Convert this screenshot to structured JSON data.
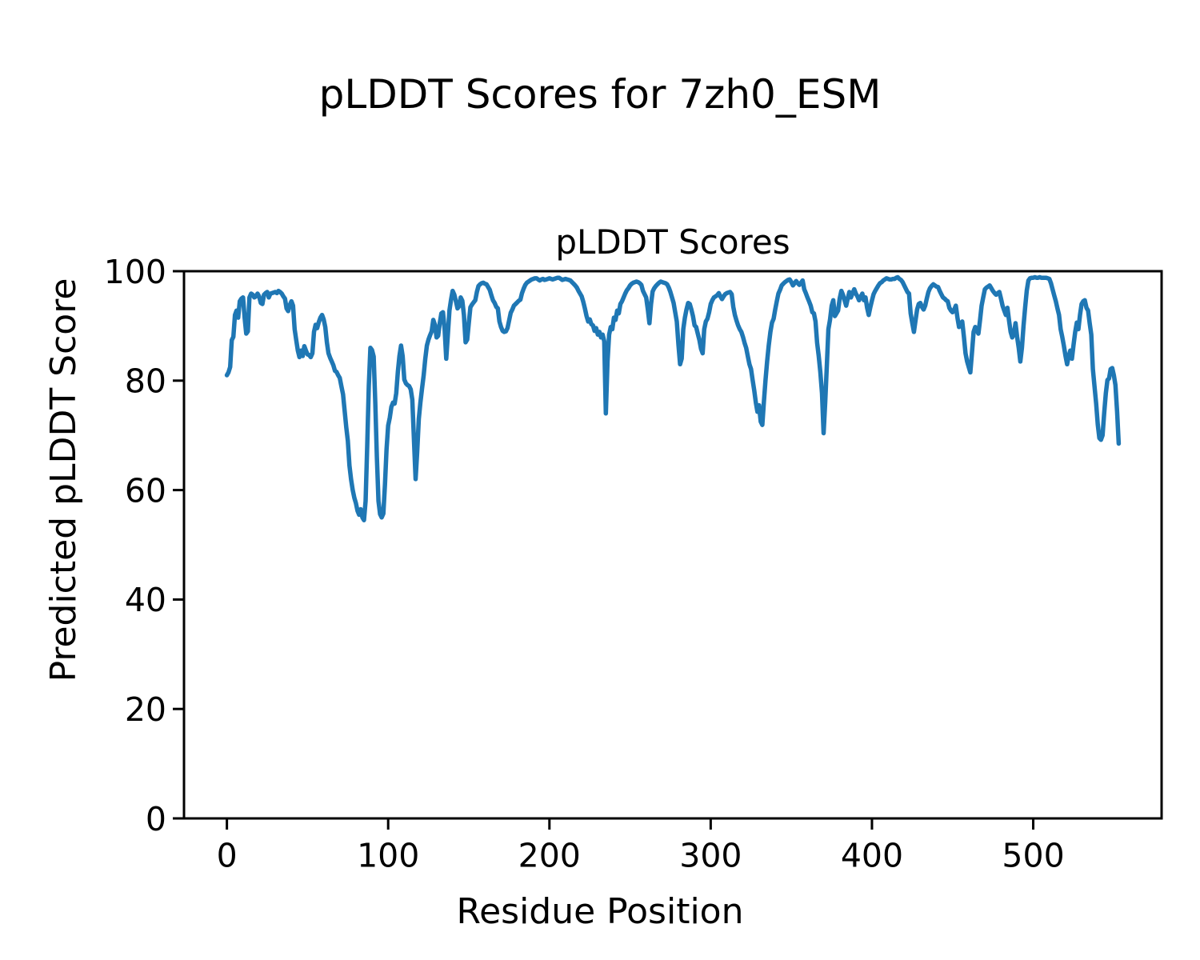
{
  "figure": {
    "suptitle": "pLDDT Scores for 7zh0_ESM"
  },
  "chart_data": {
    "type": "line",
    "title": "pLDDT Scores",
    "xlabel": "Residue Position",
    "ylabel": "Predicted pLDDT Score",
    "x_ticks": [
      0,
      100,
      200,
      300,
      400,
      500
    ],
    "y_ticks": [
      0,
      20,
      40,
      60,
      80,
      100
    ],
    "xlim": [
      -26.6,
      579.6
    ],
    "ylim": [
      0,
      100
    ],
    "grid": false,
    "legend_position": "none",
    "line_color": "#1f77b4",
    "axis_color": "#000000",
    "x_start": 0,
    "x_step": 1,
    "series": [
      {
        "name": "pLDDT",
        "values": [
          81,
          81.5,
          82.5,
          87.4,
          88,
          92,
          92.8,
          91.5,
          94.5,
          95,
          95.2,
          91.5,
          88.6,
          89,
          95.2,
          95.9,
          95.7,
          95.2,
          95.4,
          95.9,
          95.4,
          94.2,
          94,
          95.7,
          96,
          96.2,
          95.2,
          95.9,
          96,
          96.1,
          96.2,
          96,
          96.4,
          96.2,
          95.9,
          95.4,
          95,
          93.2,
          92.7,
          93.8,
          94.5,
          93.7,
          89.4,
          87.4,
          85.5,
          84.3,
          85.5,
          84.5,
          86.3,
          85.5,
          84.8,
          84.7,
          84.3,
          85,
          88.9,
          90.2,
          89.6,
          90.7,
          91.5,
          92,
          91.2,
          89.8,
          87,
          85,
          84.2,
          83.5,
          82.8,
          81.8,
          81.6,
          81,
          80.5,
          79,
          77.5,
          74.5,
          71.5,
          69,
          64.5,
          62,
          60,
          58.6,
          57.6,
          56.2,
          55.5,
          56.5,
          55,
          54.5,
          58,
          68,
          79,
          86,
          85.6,
          84.4,
          76,
          66,
          58,
          55.6,
          55,
          55.7,
          61,
          67.5,
          71.8,
          73.2,
          75.2,
          76,
          75.8,
          77.7,
          81.6,
          84.5,
          86.4,
          84.5,
          80.2,
          79.5,
          79.2,
          79,
          78.4,
          76.5,
          69,
          62,
          67,
          73,
          76,
          78.5,
          81,
          84,
          86.4,
          87.5,
          88.3,
          89,
          91.1,
          90.2,
          87.9,
          88.2,
          90.5,
          92.3,
          92.5,
          89.4,
          84,
          88.4,
          92.8,
          94.8,
          96.4,
          95.7,
          94.5,
          93.2,
          93.6,
          95.2,
          94.6,
          92,
          87,
          87.5,
          90.5,
          93.4,
          93.9,
          94.3,
          94.7,
          96.2,
          97.3,
          97.6,
          97.8,
          97.9,
          97.7,
          97.6,
          97.1,
          96.6,
          95.6,
          94.7,
          94.2,
          93.5,
          93.2,
          90.8,
          89.8,
          89.1,
          88.9,
          89,
          89.6,
          91,
          92.4,
          93,
          93.7,
          94,
          94.3,
          94.6,
          94.8,
          96,
          96.8,
          97.5,
          97.9,
          98.1,
          98.3,
          98.5,
          98.6,
          98.7,
          98.7,
          98.5,
          98.3,
          98.5,
          98.6,
          98.4,
          98.5,
          98.6,
          98.7,
          98.6,
          98.5,
          98.6,
          98.7,
          98.8,
          98.8,
          98.6,
          98.4,
          98.5,
          98.6,
          98.5,
          98.4,
          98.3,
          98,
          97.7,
          97.4,
          97,
          96.4,
          95.9,
          95.4,
          94.4,
          93.2,
          91.8,
          90.8,
          91.2,
          90.3,
          90.1,
          89.1,
          89.6,
          88.4,
          88.9,
          87.9,
          88.4,
          87.2,
          74,
          83.5,
          88.4,
          89.8,
          89.4,
          91.5,
          91.1,
          92.8,
          92.3,
          94,
          94.5,
          95.2,
          95.9,
          96.5,
          96.9,
          97.4,
          97.7,
          97.9,
          98,
          98.1,
          98,
          97.8,
          97.5,
          96.4,
          95.8,
          95.2,
          93,
          90.5,
          94,
          96.3,
          96.9,
          97.3,
          97.6,
          97.9,
          98.1,
          98,
          97.9,
          97.8,
          97.6,
          97,
          96.2,
          95.2,
          94.2,
          92.5,
          90.8,
          86.5,
          83,
          84,
          89.4,
          91.5,
          93,
          94.2,
          94,
          93,
          91.8,
          90.1,
          89.8,
          88.6,
          87.4,
          85.8,
          85,
          89.4,
          90.8,
          91.3,
          92.5,
          94,
          94.7,
          95.2,
          95.4,
          95.6,
          96,
          95.4,
          94.9,
          95.4,
          95.8,
          96,
          96.1,
          96.2,
          95.8,
          93.5,
          92,
          91,
          90.1,
          89.4,
          88.9,
          88,
          86.9,
          86,
          84.5,
          83,
          82.1,
          80.1,
          78.2,
          76,
          74.3,
          75.5,
          72.5,
          71.9,
          76.2,
          80.1,
          83.5,
          86.4,
          88.9,
          90.6,
          91.3,
          93,
          94.5,
          95.9,
          96.6,
          97.4,
          97.7,
          98,
          98.2,
          98.4,
          98.5,
          98,
          97.4,
          97.8,
          98.2,
          97.8,
          97.5,
          97.9,
          98.3,
          96.7,
          96,
          95.2,
          94.5,
          93.7,
          92.5,
          92.3,
          90.8,
          86.9,
          84.5,
          81.6,
          77.7,
          70.4,
          76,
          82.6,
          89.4,
          91.1,
          93.7,
          94.7,
          91.8,
          92.3,
          92.8,
          95,
          96.4,
          95.7,
          94.7,
          93.7,
          95,
          96.2,
          95.2,
          96,
          96.7,
          95.9,
          95.4,
          94.7,
          95.3,
          95.9,
          94.7,
          95.2,
          93.3,
          92,
          93.4,
          94.7,
          95.8,
          96.4,
          96.9,
          97.4,
          97.8,
          98,
          98.3,
          98.5,
          98.7,
          98.6,
          98.5,
          98.5,
          98.6,
          98.6,
          98.8,
          98.9,
          98.6,
          98.4,
          98,
          97.4,
          96.8,
          96.2,
          95.9,
          92.3,
          90.5,
          88.9,
          91,
          93,
          94,
          94.2,
          93.5,
          93,
          93.7,
          95,
          96.2,
          96.9,
          97.3,
          97.6,
          97.4,
          97.2,
          97.1,
          96.4,
          95.8,
          95.2,
          95,
          94.7,
          94.5,
          93.3,
          92.8,
          92.5,
          93,
          93.7,
          91.5,
          89.8,
          90.3,
          90.8,
          88,
          85,
          83.5,
          82.5,
          81.5,
          85,
          88.9,
          89.8,
          89.2,
          88.6,
          91,
          93.7,
          95.2,
          96.7,
          97,
          97.2,
          97.4,
          96.9,
          96.4,
          96,
          95.7,
          96,
          96.2,
          95,
          93.7,
          92.8,
          92,
          93.3,
          91,
          88.9,
          87.9,
          88.5,
          90.5,
          88,
          86,
          83.5,
          86,
          90,
          93.5,
          96.5,
          98.3,
          98.7,
          98.8,
          98.8,
          98.9,
          98.8,
          98.8,
          98.9,
          98.8,
          98.8,
          98.8,
          98.8,
          98.7,
          98.6,
          97.8,
          96.7,
          95.6,
          94.5,
          93.2,
          92,
          89.4,
          88,
          86.4,
          84.5,
          83,
          84.5,
          85.5,
          84,
          86.5,
          88.9,
          90.6,
          89.4,
          92,
          94,
          94.5,
          94.7,
          93.3,
          92.8,
          90.5,
          88.4,
          82.1,
          79,
          75.8,
          72,
          69.5,
          69.2,
          70,
          74,
          77.7,
          80.1,
          80.4,
          82.1,
          82.3,
          81,
          79.2,
          74.3,
          68.5
        ]
      }
    ]
  }
}
